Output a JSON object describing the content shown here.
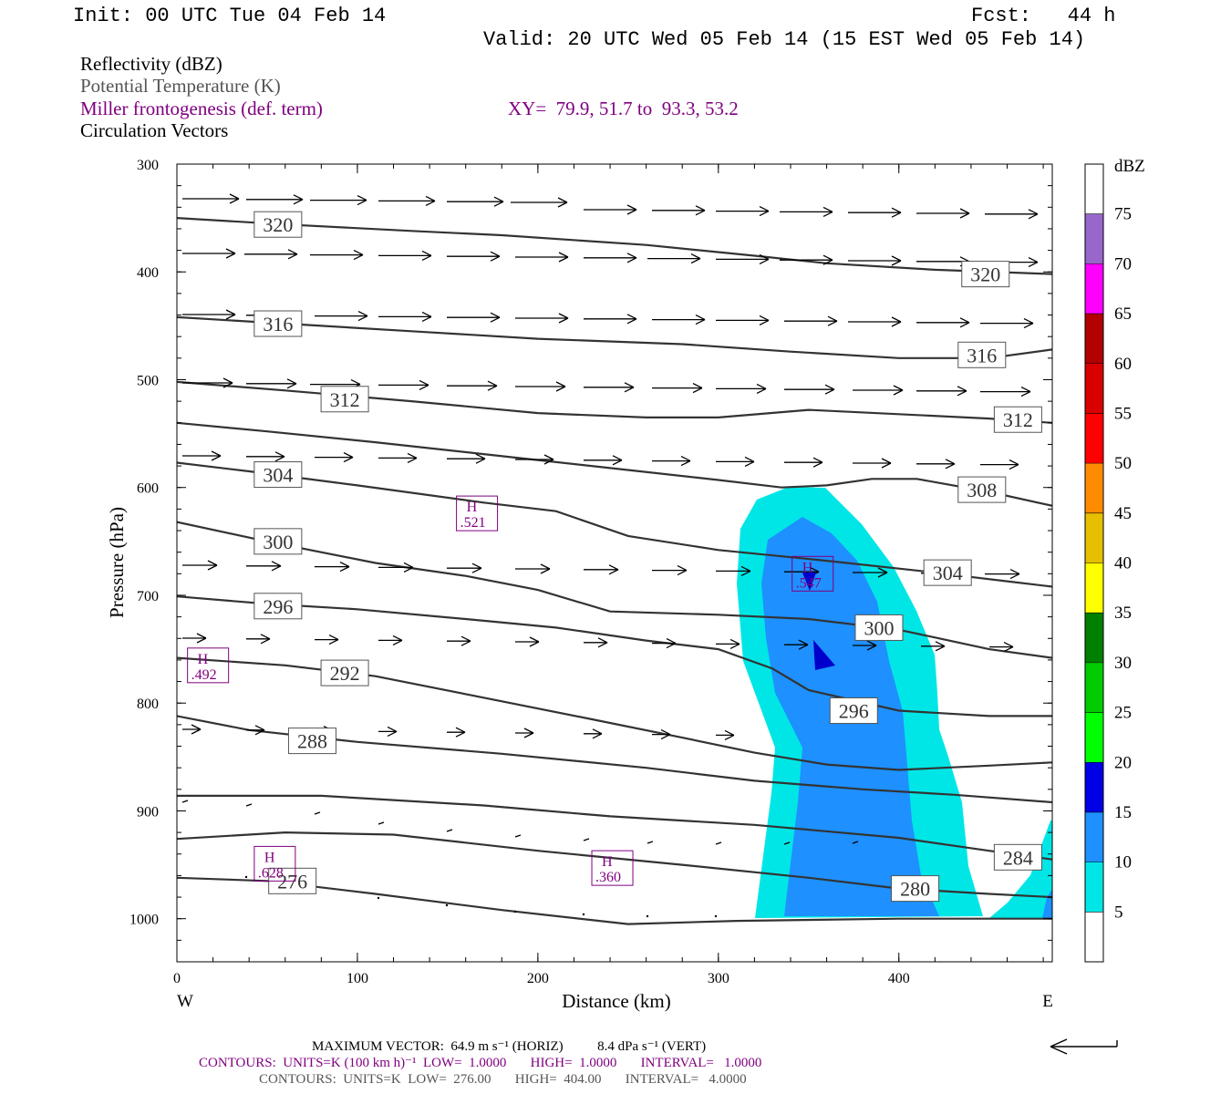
{
  "header": {
    "init": "Init: 00 UTC Tue 04 Feb 14",
    "fcst": "Fcst:   44 h",
    "valid": "Valid: 20 UTC Wed 05 Feb 14 (15 EST Wed 05 Feb 14)"
  },
  "fields": {
    "reflectivity": "Reflectivity (dBZ)",
    "theta": "Potential Temperature (K)",
    "miller": "Miller frontogenesis (def. term)",
    "xy": "XY=  79.9, 51.7 to  93.3, 53.2",
    "vectors": "Circulation Vectors"
  },
  "colors": {
    "theta_contour": "#333333",
    "frontogenesis": "#800080",
    "dbz_5": "#00e6e6",
    "dbz_10": "#1e90ff"
  },
  "chart_data": {
    "type": "contour-cross-section",
    "xlabel": "Distance (km)",
    "ylabel": "Pressure (hPa)",
    "xlim": [
      0,
      485
    ],
    "ylim": [
      1040,
      300
    ],
    "x_ticks": [
      "0",
      "100",
      "200",
      "300",
      "400"
    ],
    "y_ticks": [
      "300",
      "400",
      "500",
      "600",
      "700",
      "800",
      "900",
      "1000"
    ],
    "west_label": "W",
    "east_label": "E",
    "theta_contours": [
      {
        "value": 320,
        "label": "320",
        "points": [
          [
            0,
            350
          ],
          [
            60,
            356
          ],
          [
            130,
            362
          ],
          [
            180,
            366
          ],
          [
            260,
            375
          ],
          [
            320,
            385
          ],
          [
            360,
            392
          ],
          [
            420,
            398
          ],
          [
            485,
            402
          ]
        ]
      },
      {
        "value": 316,
        "label": "316",
        "points": [
          [
            0,
            442
          ],
          [
            60,
            448
          ],
          [
            130,
            455
          ],
          [
            200,
            462
          ],
          [
            280,
            467
          ],
          [
            340,
            474
          ],
          [
            400,
            480
          ],
          [
            450,
            480
          ],
          [
            485,
            472
          ]
        ]
      },
      {
        "value": 312,
        "label": "312",
        "points": [
          [
            0,
            502
          ],
          [
            60,
            510
          ],
          [
            130,
            520
          ],
          [
            200,
            531
          ],
          [
            260,
            535
          ],
          [
            300,
            535
          ],
          [
            350,
            528
          ],
          [
            400,
            532
          ],
          [
            450,
            536
          ],
          [
            485,
            540
          ]
        ]
      },
      {
        "value": 308,
        "label": "308",
        "points": [
          [
            0,
            540
          ],
          [
            50,
            548
          ],
          [
            110,
            558
          ],
          [
            170,
            569
          ],
          [
            240,
            582
          ],
          [
            300,
            593
          ],
          [
            335,
            600
          ],
          [
            360,
            598
          ],
          [
            385,
            592
          ],
          [
            410,
            592
          ],
          [
            450,
            604
          ],
          [
            485,
            617
          ]
        ]
      },
      {
        "value": 304,
        "label": "304",
        "points": [
          [
            0,
            577
          ],
          [
            40,
            585
          ],
          [
            100,
            598
          ],
          [
            170,
            614
          ],
          [
            210,
            622
          ],
          [
            250,
            645
          ],
          [
            300,
            658
          ],
          [
            360,
            668
          ],
          [
            410,
            677
          ],
          [
            460,
            687
          ],
          [
            485,
            692
          ]
        ]
      },
      {
        "value": 300,
        "label": "300",
        "points": [
          [
            0,
            632
          ],
          [
            50,
            650
          ],
          [
            110,
            670
          ],
          [
            160,
            682
          ],
          [
            200,
            695
          ],
          [
            240,
            715
          ],
          [
            300,
            718
          ],
          [
            350,
            722
          ],
          [
            400,
            732
          ],
          [
            450,
            750
          ],
          [
            485,
            758
          ]
        ]
      },
      {
        "value": 296,
        "label": "296",
        "points": [
          [
            0,
            701
          ],
          [
            50,
            708
          ],
          [
            100,
            713
          ],
          [
            160,
            722
          ],
          [
            210,
            730
          ],
          [
            260,
            742
          ],
          [
            300,
            750
          ],
          [
            330,
            768
          ],
          [
            350,
            788
          ],
          [
            400,
            807
          ],
          [
            450,
            812
          ],
          [
            485,
            812
          ]
        ]
      },
      {
        "value": 292,
        "label": "292",
        "points": [
          [
            0,
            758
          ],
          [
            60,
            765
          ],
          [
            110,
            775
          ],
          [
            170,
            795
          ],
          [
            230,
            815
          ],
          [
            280,
            832
          ],
          [
            320,
            846
          ],
          [
            360,
            857
          ],
          [
            400,
            862
          ],
          [
            450,
            858
          ],
          [
            485,
            855
          ]
        ]
      },
      {
        "value": 288,
        "label": "288",
        "points": [
          [
            0,
            812
          ],
          [
            40,
            825
          ],
          [
            100,
            836
          ],
          [
            180,
            847
          ],
          [
            260,
            860
          ],
          [
            320,
            872
          ],
          [
            380,
            880
          ],
          [
            430,
            885
          ],
          [
            485,
            892
          ]
        ]
      },
      {
        "value": 284,
        "label": "284",
        "points": [
          [
            0,
            886
          ],
          [
            80,
            886
          ],
          [
            170,
            895
          ],
          [
            240,
            905
          ],
          [
            320,
            913
          ],
          [
            400,
            925
          ],
          [
            450,
            937
          ],
          [
            485,
            945
          ]
        ]
      },
      {
        "value": 280,
        "label": "280",
        "points": [
          [
            0,
            926
          ],
          [
            60,
            920
          ],
          [
            120,
            922
          ],
          [
            200,
            937
          ],
          [
            280,
            950
          ],
          [
            350,
            962
          ],
          [
            400,
            972
          ],
          [
            450,
            977
          ],
          [
            485,
            980
          ]
        ]
      },
      {
        "value": 276,
        "label": "276",
        "points": [
          [
            0,
            962
          ],
          [
            50,
            965
          ],
          [
            110,
            977
          ],
          [
            180,
            992
          ],
          [
            250,
            1005
          ],
          [
            310,
            1002
          ],
          [
            400,
            1000
          ],
          [
            485,
            1000
          ]
        ]
      }
    ],
    "reflectivity_levels": [
      "5",
      "10"
    ],
    "frontogenesis_maxima": [
      {
        "label": "H",
        "value": ".521",
        "x": 166,
        "p": 624
      },
      {
        "label": "H",
        "value": ".547",
        "x": 352,
        "p": 680
      },
      {
        "label": "H",
        "value": ".492",
        "x": 17,
        "p": 765
      },
      {
        "label": "H",
        "value": ".628",
        "x": 54,
        "p": 949
      },
      {
        "label": "H",
        "value": ".360",
        "x": 241,
        "p": 953
      }
    ],
    "colorbar": {
      "unit": "dBZ",
      "ticks": [
        "75",
        "70",
        "65",
        "60",
        "55",
        "50",
        "45",
        "40",
        "35",
        "30",
        "25",
        "20",
        "15",
        "10",
        "5"
      ],
      "colors": [
        "#ffffff",
        "#00e6e6",
        "#1e90ff",
        "#0000e6",
        "#00ff00",
        "#00cc00",
        "#008000",
        "#ffff00",
        "#e6bf00",
        "#ff8c00",
        "#ff0000",
        "#d90000",
        "#b30000",
        "#ff00ff",
        "#9966cc",
        "#ffffff"
      ]
    },
    "max_vector_arrow": "←"
  },
  "footer": {
    "line1": "MAXIMUM VECTOR:  64.9 m s⁻¹ (HORIZ)          8.4 dPa s⁻¹ (VERT)",
    "line2": "CONTOURS:  UNITS=K (100 km h)⁻¹  LOW=  1.0000       HIGH=  1.0000       INTERVAL=   1.0000",
    "line3": "CONTOURS:  UNITS=K  LOW=  276.00       HIGH=  404.00       INTERVAL=   4.0000"
  }
}
